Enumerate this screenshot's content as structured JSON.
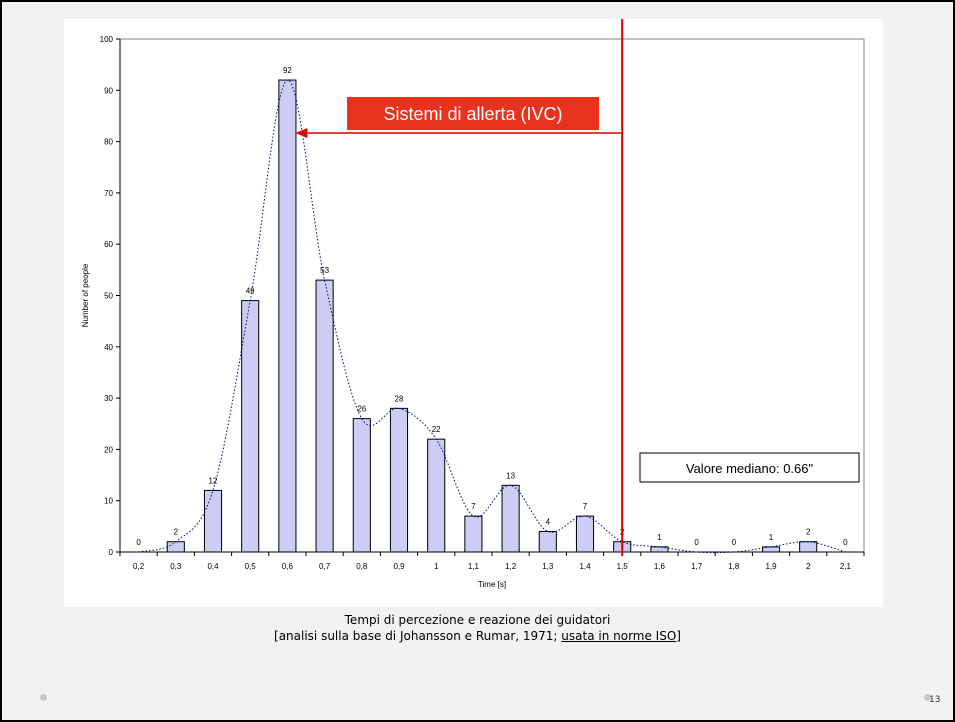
{
  "slide": {
    "caption_line1": "Tempi di percezione e reazione dei guidatori",
    "caption_line2_prefix": "[analisi sulla base di Johansson e Rumar, 1971; ",
    "caption_line2_link": "usata in norme ISO",
    "caption_line2_suffix": "]",
    "page_number": "13"
  },
  "colors": {
    "bar_fill": "#ccccf5",
    "bar_stroke": "#000000",
    "curve": "#000080",
    "marker_line": "#e00000",
    "callout_fill": "#e8321e",
    "callout_text": "#ffffff"
  },
  "chart_data": {
    "type": "bar",
    "xlabel": "Time [s]",
    "ylabel": "Number of people",
    "ylim": [
      0,
      100
    ],
    "yticks": [
      0,
      10,
      20,
      30,
      40,
      50,
      60,
      70,
      80,
      90,
      100
    ],
    "grid": false,
    "categories": [
      "0,2",
      "0,3",
      "0,4",
      "0,5",
      "0,6",
      "0,7",
      "0,8",
      "0,9",
      "1",
      "1,1",
      "1,2",
      "1,3",
      "1,4",
      "1,5",
      "1,6",
      "1,7",
      "1,8",
      "1,9",
      "2",
      "2,1"
    ],
    "values": [
      0,
      2,
      12,
      49,
      92,
      53,
      26,
      28,
      22,
      7,
      13,
      4,
      7,
      2,
      1,
      0,
      0,
      1,
      2,
      0
    ],
    "trend_line": "dotted smoothed curve through bar tops",
    "marker": {
      "x": "1,5",
      "color": "red vertical line"
    },
    "annotations": {
      "callout": "Sistemi di allerta (IVC)",
      "callout_arrow_to": "0,6",
      "median_box": "Valore mediano: 0.66\""
    }
  }
}
